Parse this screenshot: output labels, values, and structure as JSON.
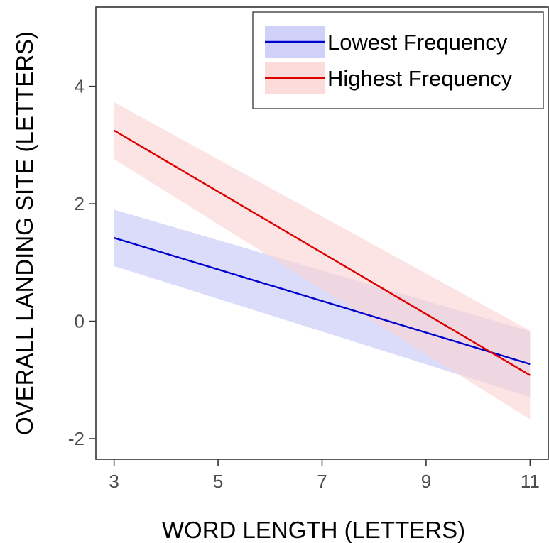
{
  "chart_data": {
    "type": "line",
    "xlabel": "WORD LENGTH (LETTERS)",
    "ylabel": "OVERALL LANDING SITE (LETTERS)",
    "xlim": [
      2.65,
      11.35
    ],
    "ylim": [
      -2.35,
      5.35
    ],
    "xticks": [
      3,
      5,
      7,
      9,
      11
    ],
    "yticks": [
      -2,
      0,
      2,
      4
    ],
    "grid": false,
    "legend_position": "top-right",
    "series": [
      {
        "name": "Lowest Frequency",
        "color": "#0000cc",
        "band_color": "#c8c8f7",
        "x": [
          3,
          11
        ],
        "y": [
          1.42,
          -0.73
        ],
        "lower": [
          0.94,
          -1.29
        ],
        "upper": [
          1.9,
          -0.17
        ]
      },
      {
        "name": "Highest Frequency",
        "color": "#dd0000",
        "band_color": "#fbd5d5",
        "x": [
          3,
          11
        ],
        "y": [
          3.25,
          -0.92
        ],
        "lower": [
          2.76,
          -1.67
        ],
        "upper": [
          3.73,
          -0.16
        ]
      }
    ]
  }
}
